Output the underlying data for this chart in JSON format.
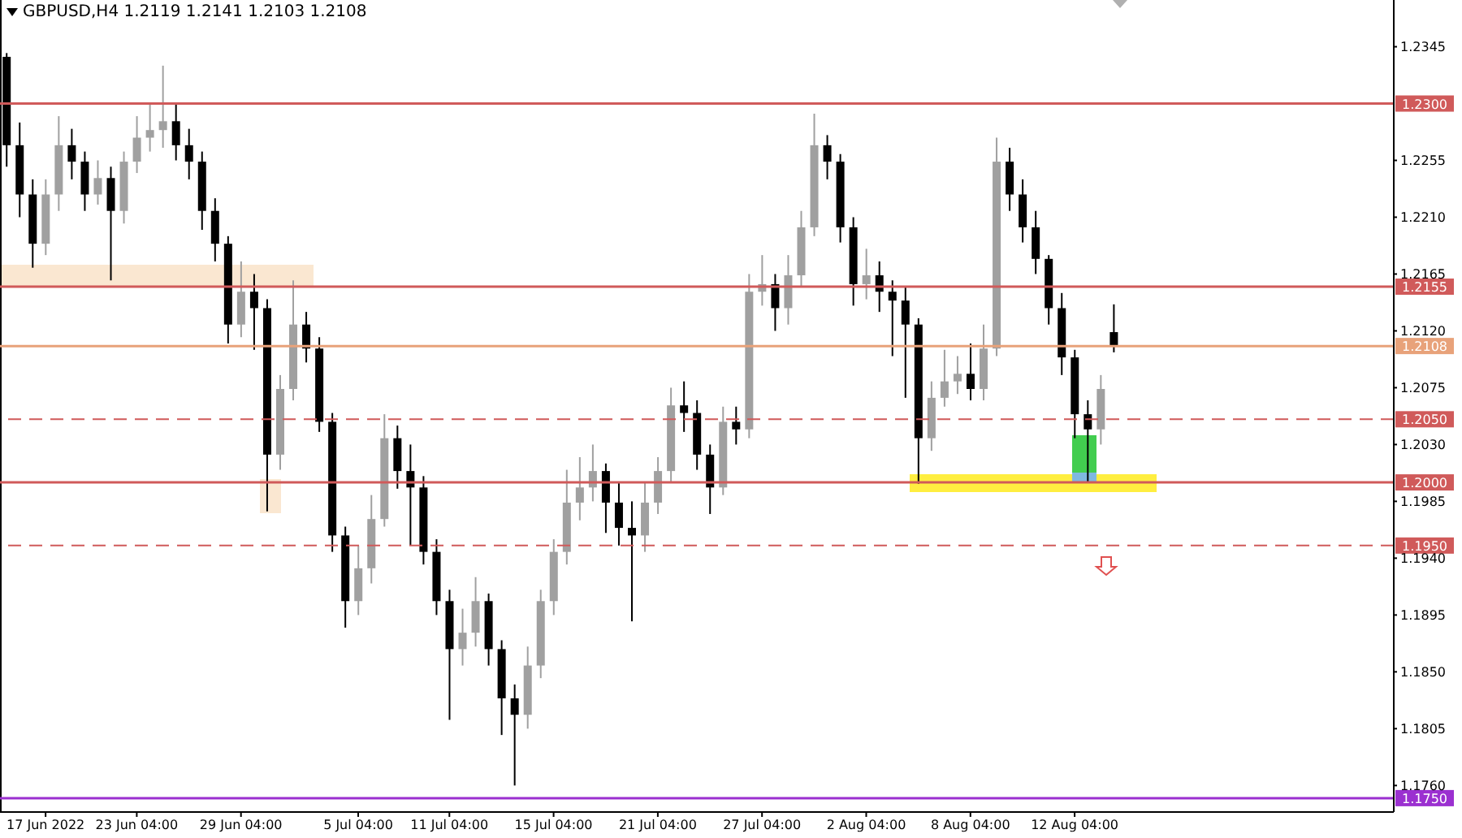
{
  "chart_data": {
    "type": "candlestick",
    "title": "GBPUSD,H4  1.2119 1.2141 1.2103 1.2108",
    "categories": [
      null,
      null,
      null,
      "17 Jun 2022",
      null,
      null,
      null,
      null,
      null,
      null,
      "23 Jun 04:00",
      null,
      null,
      null,
      null,
      null,
      null,
      null,
      "29 Jun 04:00",
      null,
      null,
      null,
      null,
      null,
      null,
      null,
      null,
      "5 Jul 04:00",
      null,
      null,
      null,
      null,
      null,
      null,
      "11 Jul 04:00",
      null,
      null,
      null,
      null,
      null,
      null,
      null,
      "15 Jul 04:00",
      null,
      null,
      null,
      null,
      null,
      null,
      null,
      "21 Jul 04:00",
      null,
      null,
      null,
      null,
      null,
      null,
      null,
      "27 Jul 04:00",
      null,
      null,
      null,
      null,
      null,
      null,
      null,
      "2 Aug 04:00",
      null,
      null,
      null,
      null,
      null,
      null,
      null,
      "8 Aug 04:00",
      null,
      null,
      null,
      null,
      null,
      null,
      null,
      "12 Aug 04:00",
      null,
      null,
      null,
      null,
      null,
      null,
      null,
      null,
      null,
      null,
      null,
      null,
      null,
      null,
      null,
      null,
      null,
      null,
      null,
      null,
      null,
      null,
      null,
      null
    ],
    "ohlc": [
      [
        1.2337,
        1.234,
        1.225,
        1.2267
      ],
      [
        1.2267,
        1.2285,
        1.221,
        1.2228
      ],
      [
        1.2228,
        1.224,
        1.217,
        1.2189
      ],
      [
        1.2189,
        1.224,
        1.218,
        1.2228
      ],
      [
        1.2228,
        1.229,
        1.2215,
        1.2267
      ],
      [
        1.2267,
        1.228,
        1.224,
        1.2254
      ],
      [
        1.2254,
        1.2262,
        1.2215,
        1.2228
      ],
      [
        1.2228,
        1.2255,
        1.222,
        1.2241
      ],
      [
        1.2241,
        1.225,
        1.216,
        1.2215
      ],
      [
        1.2215,
        1.2262,
        1.2205,
        1.2254
      ],
      [
        1.2254,
        1.229,
        1.2245,
        1.2273
      ],
      [
        1.2273,
        1.23,
        1.2262,
        1.2279
      ],
      [
        1.2279,
        1.233,
        1.2265,
        1.2286
      ],
      [
        1.2286,
        1.23,
        1.2255,
        1.2267
      ],
      [
        1.2267,
        1.228,
        1.224,
        1.2254
      ],
      [
        1.2254,
        1.2262,
        1.22,
        1.2215
      ],
      [
        1.2215,
        1.2225,
        1.2175,
        1.2189
      ],
      [
        1.2189,
        1.2195,
        1.211,
        1.2125
      ],
      [
        1.2125,
        1.2175,
        1.2115,
        1.2151
      ],
      [
        1.2151,
        1.2165,
        1.2105,
        1.2138
      ],
      [
        1.2138,
        1.2145,
        1.1977,
        1.2022
      ],
      [
        1.2022,
        1.2085,
        1.201,
        1.2074
      ],
      [
        1.2074,
        1.216,
        1.2065,
        1.2125
      ],
      [
        1.2125,
        1.2135,
        1.2095,
        1.2106
      ],
      [
        1.2106,
        1.2115,
        1.204,
        1.2048
      ],
      [
        1.2048,
        1.2055,
        1.1945,
        1.1958
      ],
      [
        1.1958,
        1.1965,
        1.1885,
        1.1906
      ],
      [
        1.1906,
        1.195,
        1.1895,
        1.1932
      ],
      [
        1.1932,
        1.199,
        1.192,
        1.1971
      ],
      [
        1.1971,
        1.2054,
        1.1965,
        1.2035
      ],
      [
        1.2035,
        1.2045,
        1.1995,
        1.2009
      ],
      [
        1.2009,
        1.203,
        1.195,
        1.1996
      ],
      [
        1.1996,
        1.2005,
        1.1935,
        1.1945
      ],
      [
        1.1945,
        1.1955,
        1.1895,
        1.1906
      ],
      [
        1.1906,
        1.1915,
        1.1812,
        1.1868
      ],
      [
        1.1868,
        1.19,
        1.1855,
        1.1881
      ],
      [
        1.1881,
        1.1925,
        1.187,
        1.1906
      ],
      [
        1.1906,
        1.1912,
        1.1855,
        1.1868
      ],
      [
        1.1868,
        1.1875,
        1.18,
        1.1829
      ],
      [
        1.1829,
        1.184,
        1.176,
        1.1816
      ],
      [
        1.1816,
        1.187,
        1.1805,
        1.1855
      ],
      [
        1.1855,
        1.1915,
        1.1845,
        1.1906
      ],
      [
        1.1906,
        1.1955,
        1.1895,
        1.1945
      ],
      [
        1.1945,
        1.201,
        1.1935,
        1.1984
      ],
      [
        1.1984,
        1.202,
        1.197,
        1.1996
      ],
      [
        1.1996,
        1.203,
        1.1985,
        1.2009
      ],
      [
        1.2009,
        1.2015,
        1.196,
        1.1984
      ],
      [
        1.1984,
        1.2,
        1.195,
        1.1964
      ],
      [
        1.1964,
        1.1985,
        1.189,
        1.1958
      ],
      [
        1.1958,
        1.2,
        1.1945,
        1.1984
      ],
      [
        1.1984,
        1.202,
        1.1975,
        1.2009
      ],
      [
        1.2009,
        1.2075,
        1.2,
        1.2061
      ],
      [
        1.2061,
        1.208,
        1.204,
        1.2055
      ],
      [
        1.2055,
        1.2065,
        1.201,
        1.2022
      ],
      [
        1.2022,
        1.203,
        1.1975,
        1.1996
      ],
      [
        1.1996,
        1.206,
        1.199,
        1.2048
      ],
      [
        1.2048,
        1.206,
        1.203,
        1.2042
      ],
      [
        1.2042,
        1.2165,
        1.2035,
        1.2151
      ],
      [
        1.2151,
        1.218,
        1.214,
        1.2157
      ],
      [
        1.2157,
        1.2165,
        1.212,
        1.2138
      ],
      [
        1.2138,
        1.218,
        1.2125,
        1.2164
      ],
      [
        1.2164,
        1.2215,
        1.2155,
        1.2202
      ],
      [
        1.2202,
        1.2292,
        1.2195,
        1.2267
      ],
      [
        1.2267,
        1.2275,
        1.224,
        1.2254
      ],
      [
        1.2254,
        1.226,
        1.219,
        1.2202
      ],
      [
        1.2202,
        1.221,
        1.214,
        1.2157
      ],
      [
        1.2157,
        1.2185,
        1.2145,
        1.2164
      ],
      [
        1.2164,
        1.2175,
        1.2135,
        1.2151
      ],
      [
        1.2151,
        1.216,
        1.21,
        1.2144
      ],
      [
        1.2144,
        1.2155,
        1.2067,
        1.2125
      ],
      [
        1.2125,
        1.213,
        1.1999,
        1.2035
      ],
      [
        1.2035,
        1.208,
        1.2025,
        1.2067
      ],
      [
        1.2067,
        1.2105,
        1.206,
        1.208
      ],
      [
        1.208,
        1.21,
        1.207,
        1.2086
      ],
      [
        1.2086,
        1.211,
        1.2065,
        1.2074
      ],
      [
        1.2074,
        1.2125,
        1.2065,
        1.2106
      ],
      [
        1.2106,
        1.2273,
        1.21,
        1.2254
      ],
      [
        1.2254,
        1.2265,
        1.2215,
        1.2228
      ],
      [
        1.2228,
        1.224,
        1.219,
        1.2202
      ],
      [
        1.2202,
        1.2215,
        1.2165,
        1.2177
      ],
      [
        1.2177,
        1.218,
        1.2125,
        1.2138
      ],
      [
        1.2138,
        1.215,
        1.2085,
        1.2099
      ],
      [
        1.2099,
        1.2105,
        1.2035,
        1.2054
      ],
      [
        1.2054,
        1.2065,
        1.2,
        1.2042
      ],
      [
        1.2042,
        1.2085,
        1.203,
        1.2074
      ],
      [
        1.2119,
        1.2141,
        1.2103,
        1.2108
      ],
      null,
      null,
      null,
      null,
      null,
      null,
      null,
      null,
      null,
      null,
      null,
      null,
      null,
      null,
      null,
      null,
      null,
      null,
      null,
      null,
      null
    ],
    "colors": [
      "#000000",
      "#000000",
      "#000000",
      "#a0a0a0",
      "#a0a0a0",
      "#000000",
      "#000000",
      "#a0a0a0",
      "#000000",
      "#a0a0a0",
      "#a0a0a0",
      "#a0a0a0",
      "#a0a0a0",
      "#000000",
      "#000000",
      "#000000",
      "#000000",
      "#000000",
      "#a0a0a0",
      "#000000",
      "#000000",
      "#a0a0a0",
      "#a0a0a0",
      "#000000",
      "#000000",
      "#000000",
      "#000000",
      "#a0a0a0",
      "#a0a0a0",
      "#a0a0a0",
      "#000000",
      "#000000",
      "#000000",
      "#000000",
      "#000000",
      "#a0a0a0",
      "#a0a0a0",
      "#000000",
      "#000000",
      "#000000",
      "#a0a0a0",
      "#a0a0a0",
      "#a0a0a0",
      "#a0a0a0",
      "#a0a0a0",
      "#a0a0a0",
      "#000000",
      "#000000",
      "#000000",
      "#a0a0a0",
      "#a0a0a0",
      "#a0a0a0",
      "#000000",
      "#000000",
      "#000000",
      "#a0a0a0",
      "#000000",
      "#a0a0a0",
      "#a0a0a0",
      "#000000",
      "#a0a0a0",
      "#a0a0a0",
      "#a0a0a0",
      "#000000",
      "#000000",
      "#000000",
      "#a0a0a0",
      "#000000",
      "#000000",
      "#000000",
      "#000000",
      "#a0a0a0",
      "#a0a0a0",
      "#a0a0a0",
      "#000000",
      "#a0a0a0",
      "#a0a0a0",
      "#000000",
      "#000000",
      "#000000",
      "#000000",
      "#000000",
      "#000000",
      "#000000",
      "#a0a0a0",
      "#000000",
      null,
      null,
      null,
      null,
      null,
      null,
      null,
      null,
      null,
      null,
      null,
      null,
      null,
      null,
      null,
      null,
      null,
      null,
      null,
      null,
      null
    ],
    "ylim": [
      1.1739,
      1.2382
    ],
    "yticks": [
      {
        "value": 1.2345,
        "label": "1.2345"
      },
      {
        "value": 1.2255,
        "label": "1.2255"
      },
      {
        "value": 1.221,
        "label": "1.2210"
      },
      {
        "value": 1.2165,
        "label": "1.2165"
      },
      {
        "value": 1.212,
        "label": "1.2120"
      },
      {
        "value": 1.2075,
        "label": "1.2075"
      },
      {
        "value": 1.203,
        "label": "1.2030"
      },
      {
        "value": 1.1985,
        "label": "1.1985"
      },
      {
        "value": 1.194,
        "label": "1.1940"
      },
      {
        "value": 1.1895,
        "label": "1.1895"
      },
      {
        "value": 1.185,
        "label": "1.1850"
      },
      {
        "value": 1.1805,
        "label": "1.1805"
      },
      {
        "value": 1.176,
        "label": "1.1760"
      }
    ],
    "ref_lines": [
      {
        "axis": "y",
        "value": 1.23,
        "label": "1.2300",
        "color": "#d05a5a",
        "line_style": "solid"
      },
      {
        "axis": "y",
        "value": 1.2155,
        "label": "1.2155",
        "color": "#d05a5a",
        "line_style": "solid"
      },
      {
        "axis": "y",
        "value": 1.2108,
        "label": "1.2108",
        "color": "#e8a27a",
        "line_style": "solid"
      },
      {
        "axis": "y",
        "value": 1.205,
        "label": "1.2050",
        "color": "#d05a5a",
        "line_style": "dashed"
      },
      {
        "axis": "y",
        "value": 1.2,
        "label": "1.2000",
        "color": "#d05a5a",
        "line_style": "solid"
      },
      {
        "axis": "y",
        "value": 1.195,
        "label": "1.1950",
        "color": "#d05a5a",
        "line_style": "dashed"
      },
      {
        "axis": "y",
        "value": 1.175,
        "label": "1.1750",
        "color": "#9b30d0",
        "line_style": "solid"
      }
    ]
  }
}
